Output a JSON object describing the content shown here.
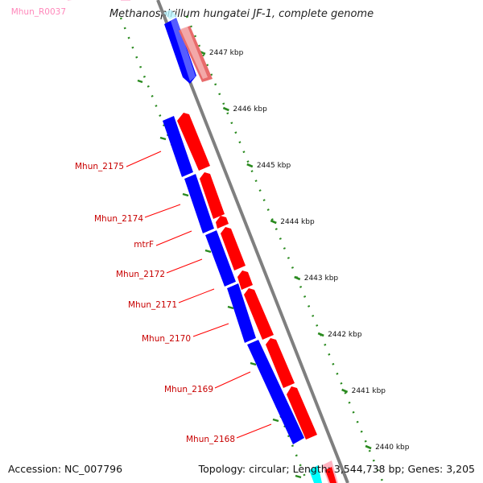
{
  "header": {
    "title": "Methanospirillum hungatei JF-1, complete genome"
  },
  "footer": {
    "accession": "Accession: NC_007796",
    "topology": "Topology: circular; Length: 3,544,738 bp; Genes: 3,205"
  },
  "ruler": {
    "unit": "kbp",
    "ticks": [
      {
        "kbp": 2447,
        "label": "2447 kbp"
      },
      {
        "kbp": 2446,
        "label": "2446 kbp"
      },
      {
        "kbp": 2445,
        "label": "2445 kbp"
      },
      {
        "kbp": 2444,
        "label": "2444 kbp"
      },
      {
        "kbp": 2443,
        "label": "2443 kbp"
      },
      {
        "kbp": 2442,
        "label": "2442 kbp"
      },
      {
        "kbp": 2441,
        "label": "2441 kbp"
      },
      {
        "kbp": 2440,
        "label": "2440 kbp"
      }
    ]
  },
  "gene_labels": [
    "Mhun_R0037",
    "Mhun_2175",
    "Mhun_2174",
    "mtrF",
    "Mhun_2172",
    "Mhun_2171",
    "Mhun_2170",
    "Mhun_2169",
    "Mhun_2168"
  ],
  "colors": {
    "backbone": "#7f7f7f",
    "forward_strand": "#ff0000",
    "reverse_strand": "#0000ff",
    "ruler_ticks": "#2a8a1f",
    "gene_label": "#c80000",
    "rna_label": "#ff88bb",
    "rna_feature": "#00ffff"
  }
}
